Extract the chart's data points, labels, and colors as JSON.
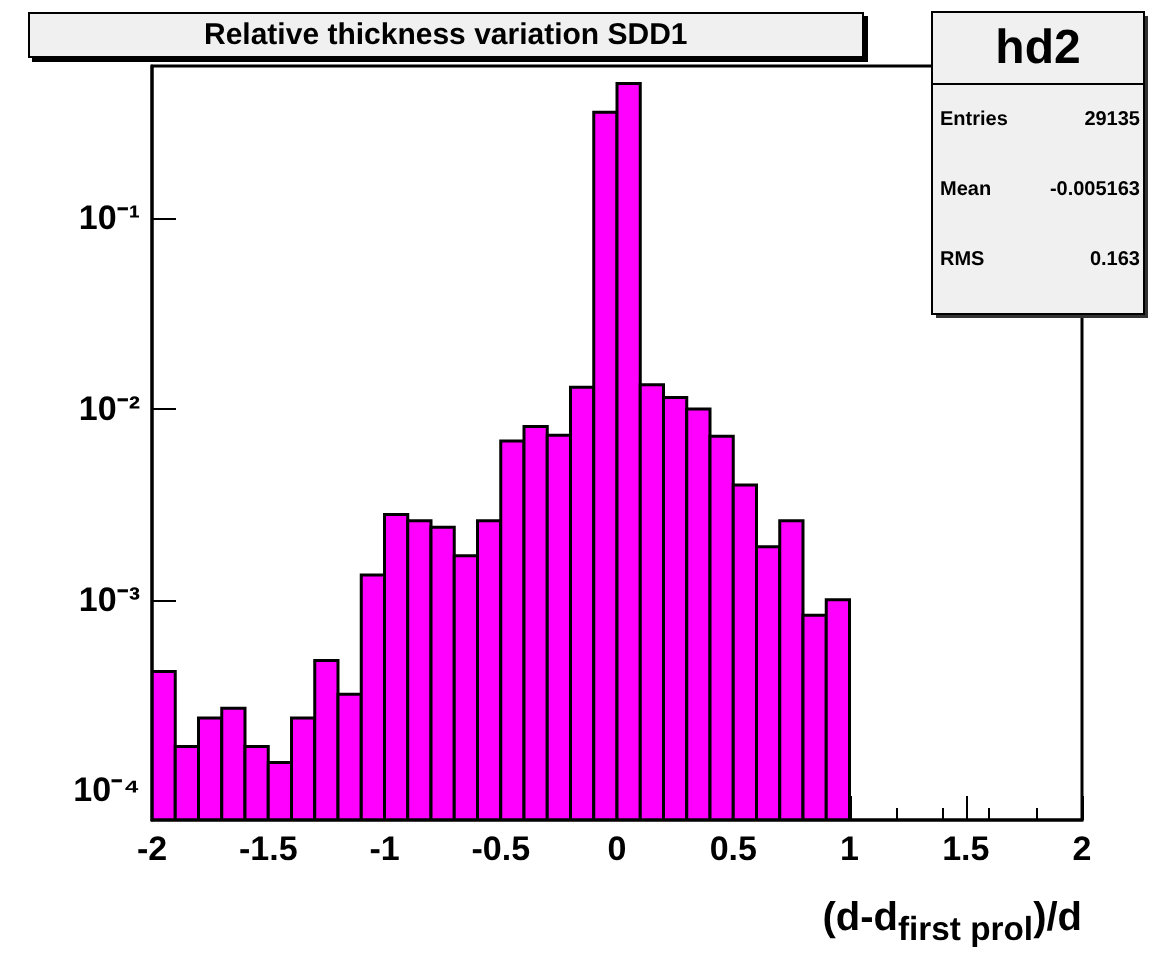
{
  "chart_data": {
    "type": "histogram",
    "title": "Relative thickness variation SDD1",
    "xlabel": "(d-d$_{first prol}$)/d",
    "bins": [
      -2,
      -1.9,
      -1.8,
      -1.7,
      -1.6,
      -1.5,
      -1.4,
      -1.3,
      -1.2,
      -1.1,
      -1,
      -0.9,
      -0.8,
      -0.7,
      -0.6,
      -0.5,
      -0.4,
      -0.3,
      -0.2,
      -0.1,
      0,
      0.1,
      0.2,
      0.3,
      0.4,
      0.5,
      0.6,
      0.7,
      0.8,
      0.9,
      1
    ],
    "values": [
      0.00042,
      0.00017,
      0.00024,
      0.00027,
      0.00017,
      0.00014,
      0.00024,
      0.00048,
      0.00032,
      0.00135,
      0.0028,
      0.0026,
      0.0024,
      0.0017,
      0.0026,
      0.0068,
      0.0081,
      0.0073,
      0.013,
      0.36,
      0.51,
      0.0134,
      0.0115,
      0.01,
      0.0072,
      0.004,
      0.0019,
      0.0026,
      0.00083,
      0.001
    ],
    "color": "#ff00ff",
    "log": "y",
    "xlim": [
      -2,
      2
    ],
    "xticks": [
      -2,
      -1.5,
      -1,
      -0.5,
      0,
      0.5,
      1,
      1.5,
      2
    ],
    "ylim": [
      7e-05,
      0.63
    ],
    "yticks": [
      {
        "value": 0.0001,
        "label": "10⁻⁴"
      },
      {
        "value": 0.001,
        "label": "10⁻³"
      },
      {
        "value": 0.01,
        "label": "10⁻²"
      },
      {
        "value": 0.1,
        "label": "10⁻¹"
      }
    ],
    "grid": false,
    "annotations": [
      "hd2",
      "Entries 29135",
      "Mean -0.005163",
      "RMS 0.163"
    ]
  }
}
